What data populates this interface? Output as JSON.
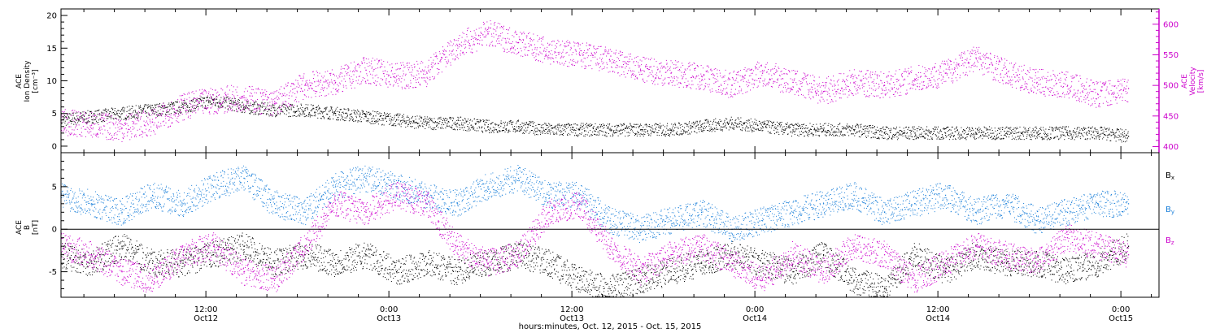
{
  "colors": {
    "density": "#000000",
    "velocity": "#cc00cc",
    "bx": "#000000",
    "by": "#1a7fd9",
    "bz": "#cc00cc",
    "axis": "#000000"
  },
  "chart_data": [
    {
      "type": "scatter",
      "panel": "top",
      "ylabel": [
        "ACE",
        "Ion Density",
        "[cm⁻³]"
      ],
      "y2label": [
        "ACE",
        "Velocity",
        "[km/s]"
      ],
      "ylim": [
        -1,
        21
      ],
      "y2lim": [
        390,
        625
      ],
      "yticks": [
        "0",
        "5",
        "10",
        "15",
        "20"
      ],
      "y2ticks": [
        "400",
        "450",
        "500",
        "550",
        "600"
      ],
      "x_unit": "hours since Oct. 12, 2015 00:00",
      "xlim": [
        0,
        72
      ],
      "grid": false,
      "series": [
        {
          "name": "Ion Density",
          "axis": "left",
          "color": "#000000",
          "x": [
            0,
            2,
            4,
            6,
            8,
            10,
            12,
            14,
            16,
            18,
            20,
            22,
            24,
            26,
            28,
            30,
            32,
            34,
            36,
            38,
            40,
            42,
            44,
            46,
            48,
            50,
            52,
            54,
            56,
            58,
            60,
            62,
            64,
            66,
            68,
            70
          ],
          "y": [
            4,
            4.5,
            5,
            5.5,
            6,
            7,
            6,
            5.5,
            5.5,
            5,
            4.5,
            4,
            3.5,
            3.5,
            3,
            3,
            2.5,
            2.5,
            2.5,
            2.5,
            2.5,
            3,
            3.5,
            3,
            2.5,
            2.5,
            2.5,
            2,
            2,
            2,
            2,
            2,
            2,
            2,
            2,
            1.5
          ]
        },
        {
          "name": "Velocity",
          "axis": "right",
          "color": "#cc00cc",
          "x": [
            0,
            2,
            4,
            6,
            8,
            10,
            12,
            14,
            16,
            18,
            20,
            22,
            24,
            26,
            28,
            30,
            32,
            34,
            36,
            38,
            40,
            42,
            44,
            46,
            48,
            50,
            52,
            54,
            56,
            58,
            60,
            62,
            64,
            66,
            68,
            70
          ],
          "y": [
            440,
            435,
            430,
            440,
            465,
            475,
            480,
            470,
            500,
            505,
            525,
            515,
            520,
            565,
            585,
            570,
            555,
            550,
            540,
            525,
            520,
            515,
            500,
            520,
            505,
            490,
            505,
            500,
            510,
            520,
            545,
            520,
            505,
            500,
            485,
            495
          ]
        }
      ]
    },
    {
      "type": "scatter",
      "panel": "bottom",
      "ylabel": [
        "ACE",
        "B",
        "[nT]"
      ],
      "ylim": [
        -8,
        9
      ],
      "yticks": [
        "-5",
        "0",
        "5"
      ],
      "xlabel": "hours:minutes, Oct. 12, 2015 - Oct. 15, 2015",
      "x_unit": "hours since Oct. 12, 2015 00:00",
      "xlim": [
        0,
        72
      ],
      "xticks": [
        {
          "x": 9.5,
          "line1": "12:00",
          "line2": "Oct12"
        },
        {
          "x": 21.5,
          "line1": "0:00",
          "line2": "Oct13"
        },
        {
          "x": 33.5,
          "line1": "12:00",
          "line2": "Oct13"
        },
        {
          "x": 45.5,
          "line1": "0:00",
          "line2": "Oct14"
        },
        {
          "x": 57.5,
          "line1": "12:00",
          "line2": "Oct14"
        },
        {
          "x": 69.5,
          "line1": "0:00",
          "line2": "Oct15"
        }
      ],
      "legend": {
        "placement": "right",
        "entries": [
          {
            "base": "B",
            "sub": "x",
            "color": "#000000"
          },
          {
            "base": "B",
            "sub": "y",
            "color": "#1a7fd9"
          },
          {
            "base": "B",
            "sub": "z",
            "color": "#cc00cc"
          }
        ]
      },
      "grid": false,
      "series": [
        {
          "name": "Bx",
          "color": "#000000",
          "x": [
            0,
            2,
            4,
            6,
            8,
            10,
            12,
            14,
            16,
            18,
            20,
            22,
            24,
            26,
            28,
            30,
            32,
            34,
            36,
            38,
            40,
            42,
            44,
            46,
            48,
            50,
            52,
            54,
            56,
            58,
            60,
            62,
            64,
            66,
            68,
            70
          ],
          "y": [
            -3,
            -4,
            -2,
            -4,
            -4,
            -3,
            -2,
            -4,
            -3,
            -4,
            -3,
            -5,
            -4,
            -5,
            -4,
            -3,
            -4,
            -6,
            -7,
            -6,
            -5,
            -4,
            -3,
            -4,
            -5,
            -3,
            -6,
            -7,
            -3,
            -5,
            -3,
            -4,
            -4,
            -5,
            -4,
            -2
          ]
        },
        {
          "name": "By",
          "color": "#1a7fd9",
          "x": [
            0,
            2,
            4,
            6,
            8,
            10,
            12,
            14,
            16,
            18,
            20,
            22,
            24,
            26,
            28,
            30,
            32,
            34,
            36,
            38,
            40,
            42,
            44,
            46,
            48,
            50,
            52,
            54,
            56,
            58,
            60,
            62,
            64,
            66,
            68,
            70
          ],
          "y": [
            4,
            3,
            2,
            4,
            3,
            5,
            6,
            3,
            2,
            5,
            6,
            5,
            4,
            3,
            5,
            6,
            4,
            4,
            1,
            0,
            1,
            2,
            0,
            1,
            2,
            3,
            4,
            2,
            3,
            4,
            2,
            3,
            1,
            2,
            3,
            3
          ]
        },
        {
          "name": "Bz",
          "color": "#cc00cc",
          "x": [
            0,
            2,
            4,
            6,
            8,
            10,
            12,
            14,
            16,
            18,
            20,
            22,
            24,
            26,
            28,
            30,
            32,
            34,
            36,
            38,
            40,
            42,
            44,
            46,
            48,
            50,
            52,
            54,
            56,
            58,
            60,
            62,
            64,
            66,
            68,
            70
          ],
          "y": [
            -2,
            -3,
            -5,
            -6,
            -3,
            -2,
            -5,
            -6,
            -2,
            3,
            2,
            4,
            3,
            -2,
            -4,
            -3,
            2,
            3,
            -2,
            -5,
            -3,
            -2,
            -4,
            -6,
            -3,
            -5,
            -2,
            -3,
            -6,
            -4,
            -2,
            -3,
            -4,
            -1,
            -2,
            -3
          ]
        }
      ]
    }
  ]
}
